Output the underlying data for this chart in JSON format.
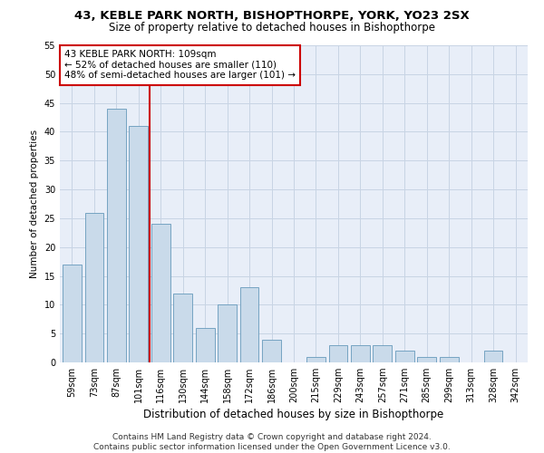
{
  "title": "43, KEBLE PARK NORTH, BISHOPTHORPE, YORK, YO23 2SX",
  "subtitle": "Size of property relative to detached houses in Bishopthorpe",
  "xlabel": "Distribution of detached houses by size in Bishopthorpe",
  "ylabel": "Number of detached properties",
  "categories": [
    "59sqm",
    "73sqm",
    "87sqm",
    "101sqm",
    "116sqm",
    "130sqm",
    "144sqm",
    "158sqm",
    "172sqm",
    "186sqm",
    "200sqm",
    "215sqm",
    "229sqm",
    "243sqm",
    "257sqm",
    "271sqm",
    "285sqm",
    "299sqm",
    "313sqm",
    "328sqm",
    "342sqm"
  ],
  "values": [
    17,
    26,
    44,
    41,
    24,
    12,
    6,
    10,
    13,
    4,
    0,
    1,
    3,
    3,
    3,
    2,
    1,
    1,
    0,
    2,
    0
  ],
  "bar_color": "#c9daea",
  "bar_edge_color": "#6699bb",
  "red_line_x": 3.5,
  "annotation_text": "43 KEBLE PARK NORTH: 109sqm\n← 52% of detached houses are smaller (110)\n48% of semi-detached houses are larger (101) →",
  "annotation_box_color": "#ffffff",
  "annotation_box_edge_color": "#cc0000",
  "ylim": [
    0,
    55
  ],
  "yticks": [
    0,
    5,
    10,
    15,
    20,
    25,
    30,
    35,
    40,
    45,
    50,
    55
  ],
  "grid_color": "#c8d4e4",
  "background_color": "#e8eef8",
  "footer": "Contains HM Land Registry data © Crown copyright and database right 2024.\nContains public sector information licensed under the Open Government Licence v3.0.",
  "title_fontsize": 9.5,
  "subtitle_fontsize": 8.5,
  "xlabel_fontsize": 8.5,
  "ylabel_fontsize": 7.5,
  "tick_fontsize": 7,
  "annotation_fontsize": 7.5,
  "footer_fontsize": 6.5
}
